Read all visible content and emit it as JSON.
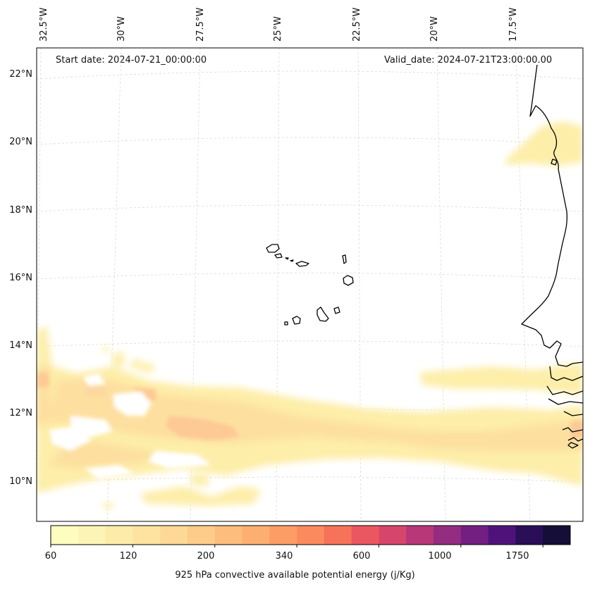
{
  "header": {
    "start_date": "Start date: 2024-07-21_00:00:00",
    "valid_date": "Valid_date: 2024-07-21T23:00:00.00"
  },
  "axes": {
    "lon_labels": [
      "32.5°W",
      "30°W",
      "27.5°W",
      "25°W",
      "22.5°W",
      "20°W",
      "17.5°W"
    ],
    "lat_labels": [
      "22°N",
      "20°N",
      "18°N",
      "16°N",
      "14°N",
      "12°N",
      "10°N"
    ]
  },
  "colorbar": {
    "title": "925 hPa convective available potential energy (j/Kg)",
    "tick_labels": [
      "60",
      "120",
      "200",
      "340",
      "600",
      "1000",
      "1750"
    ],
    "colors": [
      "#fcfdbf",
      "#fcf4b6",
      "#fdebaa",
      "#fde2a0",
      "#fdd896",
      "#fdcc8a",
      "#fdbd7c",
      "#fdaf72",
      "#fd9d66",
      "#fb8a5e",
      "#f6725a",
      "#eb5760",
      "#d6456c",
      "#b73779",
      "#942c80",
      "#721f81",
      "#4f127b",
      "#2a0e57",
      "#150e38"
    ]
  },
  "map": {
    "features": [
      "coastline-west-africa",
      "cape-verde-islands"
    ],
    "colormap": "magma_r"
  }
}
